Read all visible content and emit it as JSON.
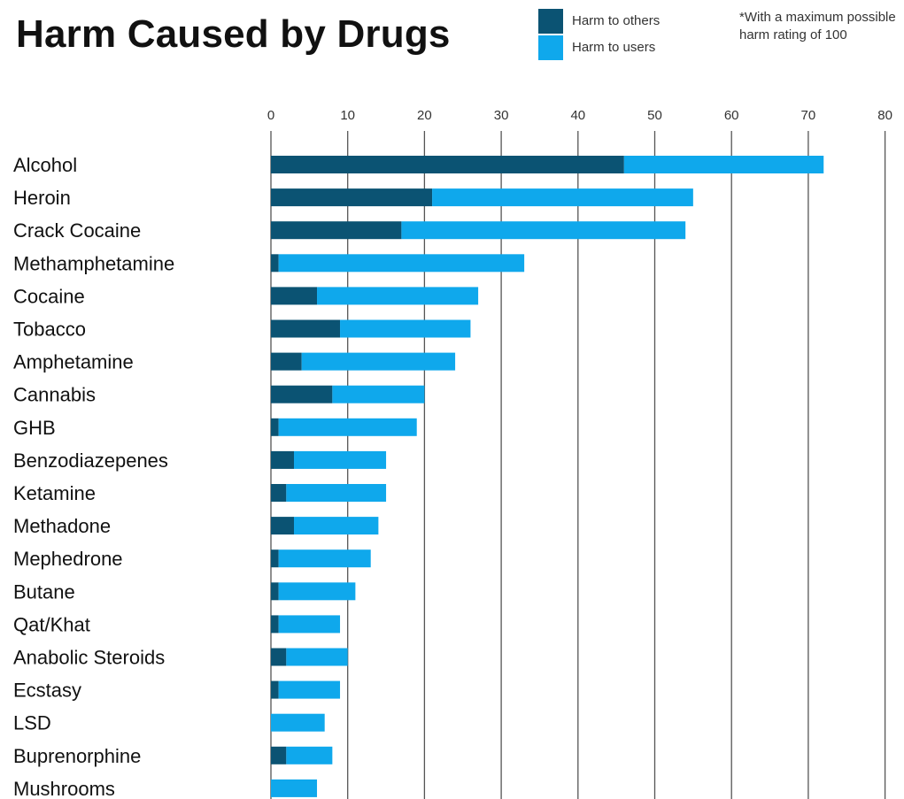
{
  "title": "Harm Caused by Drugs",
  "legend": {
    "others_label": "Harm to others",
    "users_label": "Harm to users"
  },
  "note": "*With a maximum possible harm rating of 100",
  "colors": {
    "harm_to_others": "#0b5373",
    "harm_to_users": "#0fa8ec",
    "gridline": "#555555"
  },
  "chart_data": {
    "type": "bar",
    "orientation": "horizontal",
    "stacked": true,
    "title": "Harm Caused by Drugs",
    "xlim": [
      0,
      80
    ],
    "x_ticks": [
      0,
      10,
      20,
      30,
      40,
      50,
      60,
      70,
      80
    ],
    "grid": true,
    "legend_position": "top-right",
    "categories": [
      "Alcohol",
      "Heroin",
      "Crack Cocaine",
      "Methamphetamine",
      "Cocaine",
      "Tobacco",
      "Amphetamine",
      "Cannabis",
      "GHB",
      "Benzodiazepenes",
      "Ketamine",
      "Methadone",
      "Mephedrone",
      "Butane",
      "Qat/Khat",
      "Anabolic Steroids",
      "Ecstasy",
      "LSD",
      "Buprenorphine",
      "Mushrooms"
    ],
    "series": [
      {
        "name": "Harm to others",
        "values": [
          46,
          21,
          17,
          1,
          6,
          9,
          4,
          8,
          1,
          3,
          2,
          3,
          1,
          1,
          1,
          2,
          1,
          0,
          2,
          0
        ]
      },
      {
        "name": "Harm to users",
        "values": [
          26,
          34,
          37,
          32,
          21,
          17,
          20,
          12,
          18,
          12,
          13,
          11,
          12,
          10,
          8,
          8,
          8,
          7,
          6,
          6
        ]
      }
    ]
  }
}
